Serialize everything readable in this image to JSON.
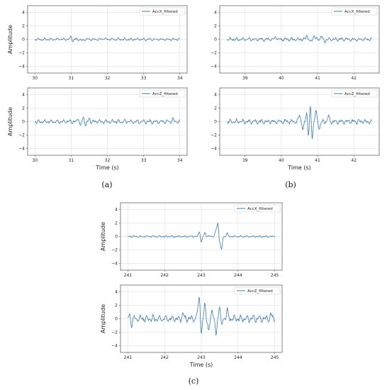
{
  "chart_data": [
    {
      "panel": "a",
      "type": "line",
      "ylabel": "Amplitude",
      "xlabel": "",
      "series": [
        {
          "name": "AccX_filtered",
          "color": "#3b7bb0",
          "x_start": 30,
          "x_end": 34,
          "amplitude": 0.22,
          "peaks": [
            [
              31.0,
              0.45
            ],
            [
              31.05,
              -0.3
            ],
            [
              31.3,
              -0.2
            ],
            [
              31.9,
              0.15
            ]
          ]
        }
      ],
      "xticks": [
        30,
        31,
        32,
        33,
        34
      ],
      "yticks": [
        -4,
        -2,
        0,
        2,
        4
      ],
      "xlim": [
        29.8,
        34.2
      ],
      "ylim": [
        -5,
        5
      ],
      "grid": true,
      "legend": "top-right"
    },
    {
      "panel": "a",
      "type": "line",
      "ylabel": "Amplitude",
      "xlabel": "Time (s)",
      "series": [
        {
          "name": "AccZ_filtered",
          "color": "#3b7bb0",
          "x_start": 30,
          "x_end": 34,
          "amplitude": 0.35,
          "peaks": [
            [
              31.2,
              0.6
            ],
            [
              31.25,
              -0.7
            ],
            [
              31.35,
              0.75
            ],
            [
              31.4,
              -0.6
            ],
            [
              31.5,
              0.45
            ],
            [
              33.8,
              0.4
            ]
          ]
        }
      ],
      "xticks": [
        30,
        31,
        32,
        33,
        34
      ],
      "yticks": [
        -4,
        -2,
        0,
        2,
        4
      ],
      "xlim": [
        29.8,
        34.2
      ],
      "ylim": [
        -5,
        5
      ],
      "grid": true,
      "legend": "top-right"
    },
    {
      "panel": "b",
      "type": "line",
      "ylabel": "",
      "xlabel": "",
      "series": [
        {
          "name": "AccX_filtered",
          "color": "#3b7bb0",
          "x_start": 38.5,
          "x_end": 42.5,
          "amplitude": 0.3,
          "peaks": [
            [
              39.85,
              0.45
            ],
            [
              40.7,
              0.55
            ],
            [
              40.8,
              -0.5
            ],
            [
              40.9,
              0.6
            ],
            [
              41.1,
              0.5
            ],
            [
              41.2,
              -0.35
            ]
          ]
        }
      ],
      "xticks": [
        39,
        40,
        41,
        42
      ],
      "yticks": [
        -4,
        -2,
        0,
        2,
        4
      ],
      "xlim": [
        38.3,
        42.7
      ],
      "ylim": [
        -5,
        5
      ],
      "grid": true,
      "legend": "top-right"
    },
    {
      "panel": "b",
      "type": "line",
      "ylabel": "",
      "xlabel": "Time (s)",
      "series": [
        {
          "name": "AccZ_filtered",
          "color": "#3b7bb0",
          "x_start": 38.5,
          "x_end": 42.5,
          "amplitude": 0.4,
          "peaks": [
            [
              40.5,
              1.0
            ],
            [
              40.6,
              -1.2
            ],
            [
              40.7,
              1.6
            ],
            [
              40.75,
              -2.2
            ],
            [
              40.8,
              2.3
            ],
            [
              40.85,
              -2.5
            ],
            [
              40.95,
              1.5
            ],
            [
              41.05,
              -1.0
            ],
            [
              41.3,
              0.8
            ]
          ]
        }
      ],
      "xticks": [
        39,
        40,
        41,
        42
      ],
      "yticks": [
        -4,
        -2,
        0,
        2,
        4
      ],
      "xlim": [
        38.3,
        42.7
      ],
      "ylim": [
        -5,
        5
      ],
      "grid": true,
      "legend": "top-right"
    },
    {
      "panel": "c",
      "type": "line",
      "ylabel": "Amplitude",
      "xlabel": "",
      "series": [
        {
          "name": "AccX_filtered",
          "color": "#3b7bb0",
          "x_start": 241,
          "x_end": 245,
          "amplitude": 0.15,
          "peaks": [
            [
              242.95,
              0.8
            ],
            [
              243.0,
              -0.9
            ],
            [
              243.1,
              0.6
            ],
            [
              243.4,
              0.9
            ],
            [
              243.45,
              2.0
            ],
            [
              243.5,
              -0.8
            ],
            [
              243.55,
              -2.0
            ],
            [
              243.7,
              0.5
            ]
          ]
        }
      ],
      "xticks": [
        241,
        242,
        243,
        244,
        245
      ],
      "yticks": [
        -4,
        -2,
        0,
        2,
        4
      ],
      "xlim": [
        240.8,
        245.2
      ],
      "ylim": [
        -5,
        5
      ],
      "grid": true,
      "legend": "top-right"
    },
    {
      "panel": "c",
      "type": "line",
      "ylabel": "Amplitude",
      "xlabel": "Time (s)",
      "series": [
        {
          "name": "AccZ_filtered",
          "color": "#3b7bb0",
          "x_start": 241,
          "x_end": 245,
          "amplitude": 0.6,
          "peaks": [
            [
              241.05,
              0.6
            ],
            [
              241.1,
              -0.8
            ],
            [
              242.5,
              0.9
            ],
            [
              242.9,
              1.2
            ],
            [
              242.95,
              3.5
            ],
            [
              243.0,
              -2.5
            ],
            [
              243.1,
              2.3
            ],
            [
              243.2,
              -2.0
            ],
            [
              243.3,
              1.5
            ],
            [
              243.4,
              -2.5
            ],
            [
              243.5,
              2.2
            ],
            [
              243.55,
              -1.5
            ],
            [
              243.7,
              1.3
            ],
            [
              244.9,
              0.6
            ]
          ]
        }
      ],
      "xticks": [
        241,
        242,
        243,
        244,
        245
      ],
      "yticks": [
        -4,
        -2,
        0,
        2,
        4
      ],
      "xlim": [
        240.8,
        245.2
      ],
      "ylim": [
        -5,
        5
      ],
      "grid": true,
      "legend": "top-right"
    }
  ],
  "captions": {
    "a": "(a)",
    "b": "(b)",
    "c": "(c)"
  }
}
